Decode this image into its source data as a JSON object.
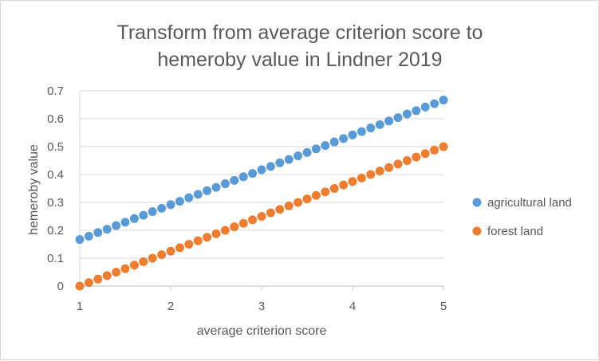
{
  "chart_data": {
    "type": "scatter",
    "title_lines": [
      "Transform from average criterion score to",
      "hemeroby value in Lindner 2019"
    ],
    "xlabel": "average criterion score",
    "ylabel": "hemeroby value",
    "xlim": [
      1,
      5
    ],
    "ylim": [
      0,
      0.7
    ],
    "x_ticks": [
      "1",
      "2",
      "3",
      "4",
      "5"
    ],
    "y_ticks": [
      "0",
      "0.1",
      "0.2",
      "0.3",
      "0.4",
      "0.5",
      "0.6",
      "0.7"
    ],
    "grid": "horizontal",
    "legend_position": "right",
    "series": [
      {
        "name": "agricultural land",
        "color": "#5b9bd5",
        "x": [
          1.0,
          1.1,
          1.2,
          1.3,
          1.4,
          1.5,
          1.6,
          1.7,
          1.8,
          1.9,
          2.0,
          2.1,
          2.2,
          2.3,
          2.4,
          2.5,
          2.6,
          2.7,
          2.8,
          2.9,
          3.0,
          3.1,
          3.2,
          3.3,
          3.4,
          3.5,
          3.6,
          3.7,
          3.8,
          3.9,
          4.0,
          4.1,
          4.2,
          4.3,
          4.4,
          4.5,
          4.6,
          4.7,
          4.8,
          4.9,
          5.0
        ],
        "y": [
          0.167,
          0.179,
          0.192,
          0.204,
          0.217,
          0.229,
          0.242,
          0.254,
          0.267,
          0.279,
          0.292,
          0.304,
          0.317,
          0.329,
          0.342,
          0.354,
          0.367,
          0.379,
          0.392,
          0.404,
          0.417,
          0.429,
          0.442,
          0.454,
          0.467,
          0.479,
          0.492,
          0.504,
          0.517,
          0.529,
          0.542,
          0.554,
          0.567,
          0.579,
          0.592,
          0.604,
          0.617,
          0.629,
          0.642,
          0.654,
          0.667
        ]
      },
      {
        "name": "forest land",
        "color": "#ed7d31",
        "x": [
          1.0,
          1.1,
          1.2,
          1.3,
          1.4,
          1.5,
          1.6,
          1.7,
          1.8,
          1.9,
          2.0,
          2.1,
          2.2,
          2.3,
          2.4,
          2.5,
          2.6,
          2.7,
          2.8,
          2.9,
          3.0,
          3.1,
          3.2,
          3.3,
          3.4,
          3.5,
          3.6,
          3.7,
          3.8,
          3.9,
          4.0,
          4.1,
          4.2,
          4.3,
          4.4,
          4.5,
          4.6,
          4.7,
          4.8,
          4.9,
          5.0
        ],
        "y": [
          0.0,
          0.0125,
          0.025,
          0.0375,
          0.05,
          0.0625,
          0.075,
          0.0875,
          0.1,
          0.1125,
          0.125,
          0.1375,
          0.15,
          0.1625,
          0.175,
          0.1875,
          0.2,
          0.2125,
          0.225,
          0.2375,
          0.25,
          0.2625,
          0.275,
          0.2875,
          0.3,
          0.3125,
          0.325,
          0.3375,
          0.35,
          0.3625,
          0.375,
          0.3875,
          0.4,
          0.4125,
          0.425,
          0.4375,
          0.45,
          0.4625,
          0.475,
          0.4875,
          0.5
        ]
      }
    ]
  }
}
